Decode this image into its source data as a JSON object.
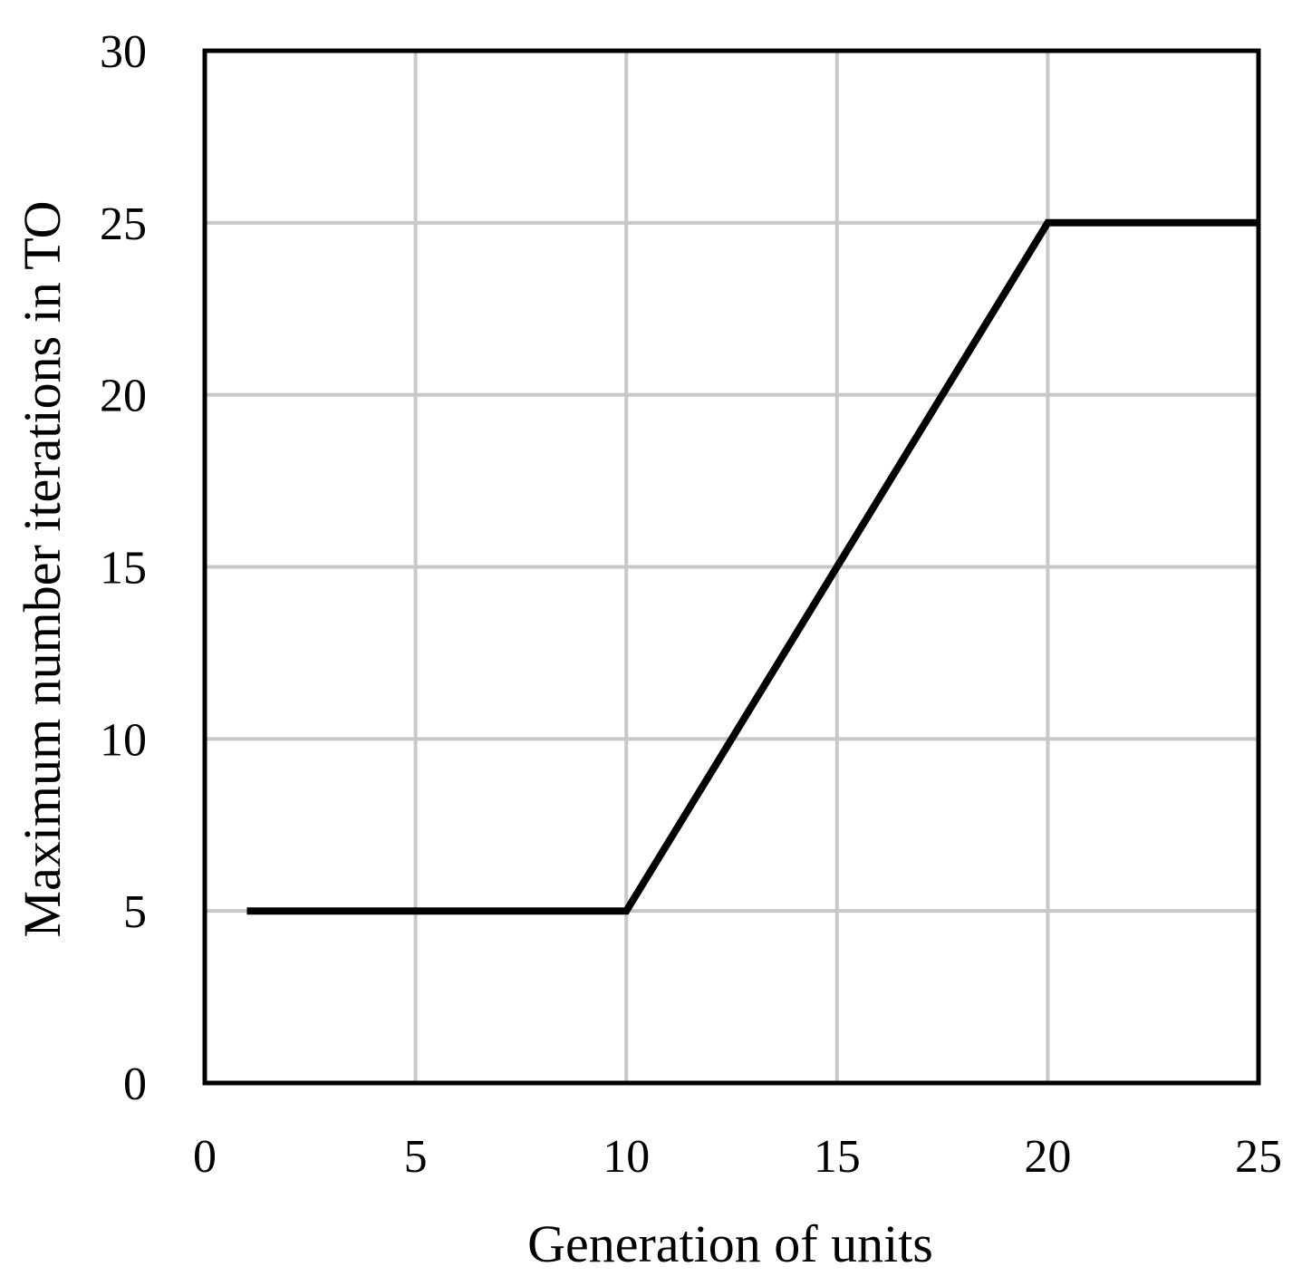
{
  "chart_data": {
    "type": "line",
    "title": "",
    "xlabel": "Generation of units",
    "ylabel": "Maximum number iterations in TO",
    "xlim": [
      0,
      25
    ],
    "ylim": [
      0,
      30
    ],
    "x_ticks": [
      0,
      5,
      10,
      15,
      20,
      25
    ],
    "y_ticks": [
      0,
      5,
      10,
      15,
      20,
      25,
      30
    ],
    "grid": true,
    "legend": "none",
    "series": [
      {
        "color": "#000000",
        "points": [
          [
            1,
            5
          ],
          [
            10,
            5
          ],
          [
            20,
            25
          ],
          [
            25,
            25
          ]
        ]
      }
    ]
  }
}
